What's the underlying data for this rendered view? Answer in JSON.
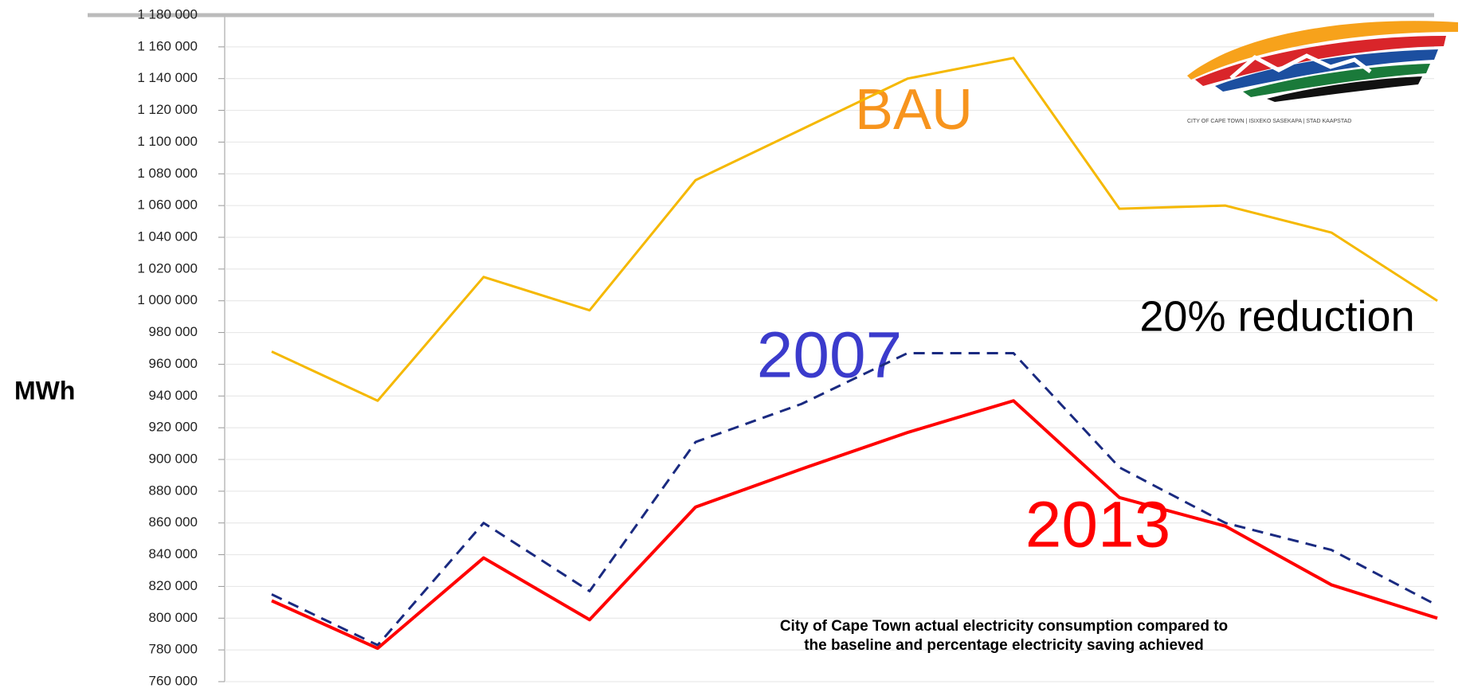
{
  "chart_data": {
    "type": "line",
    "y_label": "MWh",
    "annotations": {
      "bau": "BAU",
      "y2007": "2007",
      "y2013": "2013",
      "reduction": "20% reduction"
    },
    "caption": [
      "City of Cape Town actual electricity consumption compared to",
      "the baseline and percentage electricity saving achieved"
    ],
    "logo_text": "CITY OF CAPE TOWN | ISIXEKO SASEKAPA | STAD KAAPSTAD",
    "categories": [
      null,
      null,
      null,
      null,
      null,
      null,
      null,
      null,
      null,
      null,
      null,
      null
    ],
    "series": [
      {
        "name": "BAU",
        "color": "#f5b800",
        "values": [
          968000,
          937000,
          1015000,
          994000,
          1076000,
          1108000,
          1140000,
          1153000,
          1058000,
          1060000,
          1043000,
          1000000
        ]
      },
      {
        "name": "2007",
        "color": "#1a2a80",
        "dashed": true,
        "values": [
          815000,
          783000,
          860000,
          817000,
          911000,
          935000,
          967000,
          967000,
          895000,
          860000,
          843000,
          808000
        ]
      },
      {
        "name": "2013",
        "color": "#ff0000",
        "values": [
          811000,
          781000,
          838000,
          799000,
          870000,
          894000,
          917000,
          937000,
          876000,
          858000,
          821000,
          800000
        ]
      }
    ],
    "ylim": [
      760000,
      1180000
    ],
    "yticks": [
      {
        "value": 760000,
        "label": "760 000"
      },
      {
        "value": 780000,
        "label": "780 000"
      },
      {
        "value": 800000,
        "label": "800 000"
      },
      {
        "value": 820000,
        "label": "820 000"
      },
      {
        "value": 840000,
        "label": "840 000"
      },
      {
        "value": 860000,
        "label": "860 000"
      },
      {
        "value": 880000,
        "label": "880 000"
      },
      {
        "value": 900000,
        "label": "900 000"
      },
      {
        "value": 920000,
        "label": "920 000"
      },
      {
        "value": 940000,
        "label": "940 000"
      },
      {
        "value": 960000,
        "label": "960 000"
      },
      {
        "value": 980000,
        "label": "980 000"
      },
      {
        "value": 1000000,
        "label": "1 000 000"
      },
      {
        "value": 1020000,
        "label": "1 020 000"
      },
      {
        "value": 1040000,
        "label": "1 040 000"
      },
      {
        "value": 1060000,
        "label": "1 060 000"
      },
      {
        "value": 1080000,
        "label": "1 080 000"
      },
      {
        "value": 1100000,
        "label": "1 100 000"
      },
      {
        "value": 1120000,
        "label": "1 120 000"
      },
      {
        "value": 1140000,
        "label": "1 140 000"
      },
      {
        "value": 1160000,
        "label": "1 160 000"
      },
      {
        "value": 1180000,
        "label": "1 180 000"
      }
    ],
    "grid": true
  }
}
